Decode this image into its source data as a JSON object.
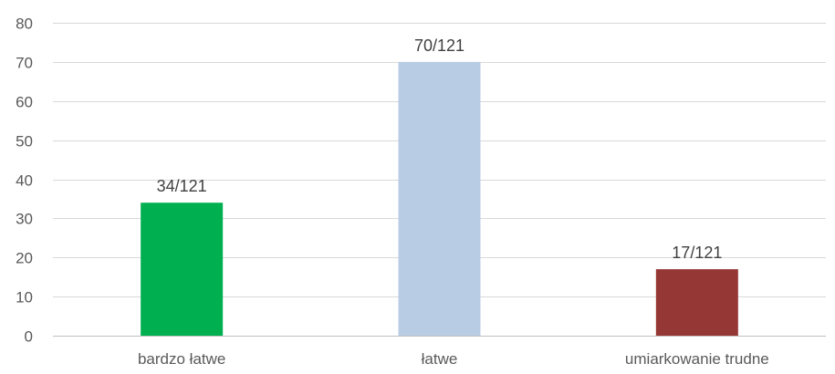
{
  "chart_data": {
    "type": "bar",
    "categories": [
      "bardzo łatwe",
      "łatwe",
      "umiarkowanie trudne"
    ],
    "values": [
      34,
      70,
      17
    ],
    "data_labels": [
      "34/121",
      "70/121",
      "17/121"
    ],
    "colors": [
      "#00b050",
      "#b8cce4",
      "#953735"
    ],
    "ylim": [
      0,
      80
    ],
    "y_ticks": [
      0,
      10,
      20,
      30,
      40,
      50,
      60,
      70,
      80
    ],
    "grid": true,
    "legend": "none",
    "title": "",
    "xlabel": "",
    "ylabel": ""
  }
}
